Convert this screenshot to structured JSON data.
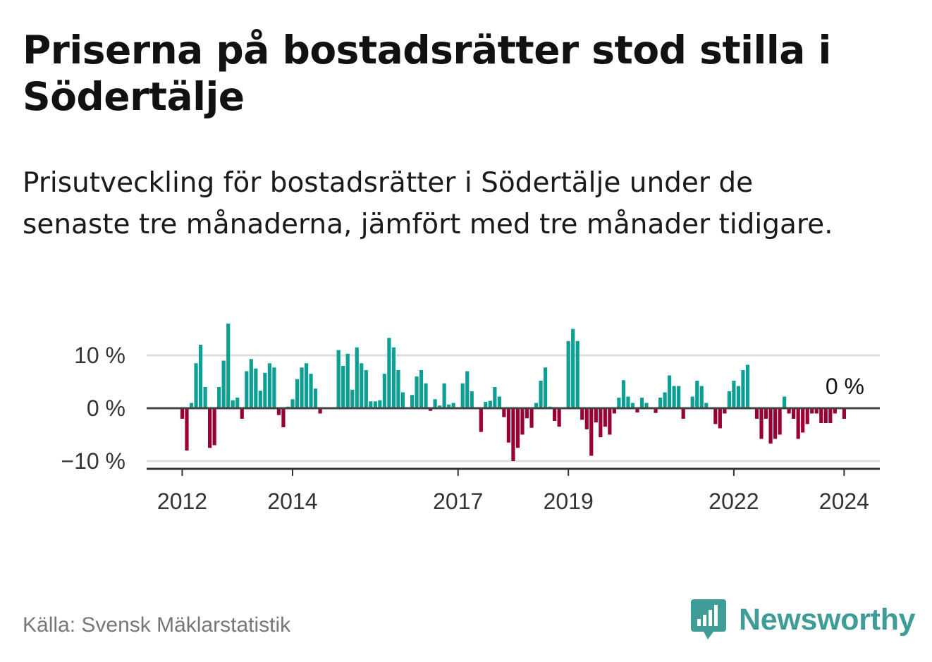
{
  "header": {
    "title": "Priserna på bostadsrätter stod stilla i Södertälje",
    "subtitle": "Prisutveckling för bostadsrätter i Södertälje under de senaste tre månaderna, jämfört med tre månader tidigare."
  },
  "footer": {
    "source": "Källa: Svensk Mäklarstatistik",
    "brand": "Newsworthy"
  },
  "colors": {
    "positive": "#0e9f94",
    "negative": "#990033",
    "gridline": "#dddddd",
    "zero_line": "#444444",
    "axis": "#333333",
    "brand": "#3f9c96"
  },
  "chart_data": {
    "type": "bar",
    "title": "Prisutveckling för bostadsrätter i Södertälje",
    "unit": "%",
    "start": "2012-01",
    "frequency": "monthly",
    "ylim": [
      -11,
      17
    ],
    "yticks": [
      {
        "value": 10,
        "label": "10 %"
      },
      {
        "value": 0,
        "label": "0 %"
      },
      {
        "value": -10,
        "label": "−10 %"
      }
    ],
    "xticks": [
      {
        "year": 2012,
        "label": "2012"
      },
      {
        "year": 2014,
        "label": "2014"
      },
      {
        "year": 2017,
        "label": "2017"
      },
      {
        "year": 2019,
        "label": "2019"
      },
      {
        "year": 2022,
        "label": "2022"
      },
      {
        "year": 2024,
        "label": "2024"
      }
    ],
    "last_value_label": "0 %",
    "values": [
      -2,
      -8,
      1,
      8.5,
      12,
      4,
      -7.5,
      -7,
      4,
      9,
      16,
      1.5,
      2,
      -2,
      7,
      9.3,
      7.5,
      3.3,
      6.7,
      8.5,
      7.7,
      -1.3,
      -3.6,
      0.3,
      1.7,
      5.5,
      7.7,
      8.5,
      6.5,
      3.7,
      -1,
      0.2,
      0.2,
      0.2,
      11,
      8,
      10.3,
      3.5,
      11.5,
      8.5,
      7.2,
      1.3,
      1.3,
      1.5,
      6.5,
      13.3,
      11.5,
      7.2,
      3,
      0.2,
      2.5,
      6,
      7.2,
      4.7,
      -0.5,
      1.7,
      0.5,
      4.7,
      0.7,
      1,
      0,
      4.7,
      7,
      3.2,
      0.2,
      -4.5,
      1.2,
      1.4,
      4,
      2.2,
      -1.7,
      -6.5,
      -10,
      -7.5,
      -5,
      -1.9,
      -3.7,
      1,
      5.2,
      7.7,
      0.3,
      -2.4,
      -3.5,
      -0.2,
      12.7,
      15,
      12.7,
      -2.2,
      -4,
      -9,
      -2.7,
      -5.5,
      -3.5,
      -5,
      -1,
      2,
      5.3,
      2.2,
      1,
      -0.8,
      2,
      1,
      0.2,
      -0.9,
      2,
      3,
      6.2,
      4.2,
      4.2,
      -2,
      0.2,
      2.2,
      5.2,
      4.2,
      1,
      0.2,
      -3,
      -3.8,
      -1,
      3.2,
      5.2,
      4.2,
      7.2,
      8.2,
      0.2,
      -2,
      -5.8,
      -2,
      -6.7,
      -5.8,
      -5,
      2.2,
      -1,
      -2,
      -5.8,
      -4.6,
      -3,
      -1,
      -1,
      -2.8,
      -2.8,
      -2.8,
      -1,
      0.2,
      -2,
      0.2
    ]
  }
}
